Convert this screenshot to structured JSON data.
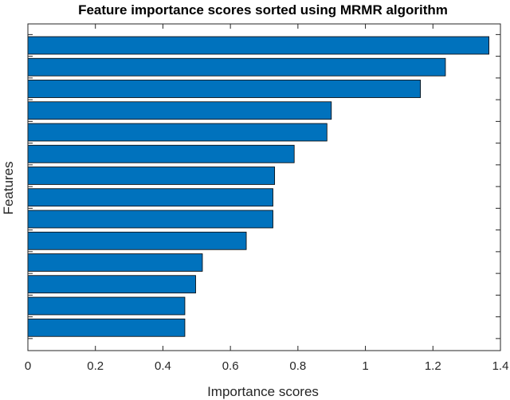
{
  "chart_data": {
    "type": "bar",
    "orientation": "horizontal",
    "title": "Feature importance scores sorted using MRMR algorithm",
    "xlabel": "Importance scores",
    "ylabel": "Features",
    "xlim": [
      0,
      1.4
    ],
    "xticks": [
      0,
      0.2,
      0.4,
      0.6,
      0.8,
      1,
      1.2,
      1.4
    ],
    "xtick_labels": [
      "0",
      "0.2",
      "0.4",
      "0.6",
      "0.8",
      "1",
      "1.2",
      "1.4"
    ],
    "values": [
      1.366,
      1.237,
      1.163,
      0.899,
      0.886,
      0.789,
      0.731,
      0.726,
      0.726,
      0.647,
      0.517,
      0.497,
      0.465,
      0.465
    ],
    "bar_color": "#0072BD",
    "bar_edge_color": "#000000",
    "grid": false,
    "legend": "none"
  }
}
